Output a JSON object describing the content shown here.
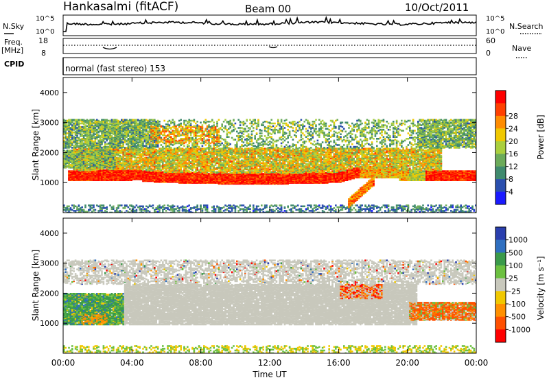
{
  "header": {
    "station": "Hankasalmi (fitACF)",
    "beam": "Beam 00",
    "date": "10/Oct/2011"
  },
  "sky_panel": {
    "left_label": "N.Sky",
    "left_ticks": [
      "10^5",
      "10^0"
    ],
    "right_ticks": [
      "10^5",
      "10^0"
    ],
    "right_label": "N.Search"
  },
  "freq_panel": {
    "left_label_1": "Freq.",
    "left_label_2": "[MHz]",
    "left_ticks": [
      "18",
      "8"
    ],
    "right_ticks": [
      "60",
      "0"
    ],
    "right_label": "Nave",
    "cpid_label": "CPID"
  },
  "mode_text": "normal (fast stereo) 153",
  "chart_data": [
    {
      "type": "heatmap",
      "name": "Power",
      "ylabel": "Slant Range [km]",
      "yticks": [
        "1000",
        "2000",
        "3000",
        "4000"
      ],
      "ylim": [
        0,
        4500
      ],
      "xlim": [
        "00:00",
        "24:00"
      ],
      "colorbar": {
        "label": "Power [dB]",
        "ticks": [
          "4",
          "8",
          "12",
          "16",
          "20",
          "24",
          "28"
        ],
        "colors": [
          "#1a1aff",
          "#2a4fae",
          "#3f8a6e",
          "#6cab5a",
          "#aacf3d",
          "#f0c800",
          "#ff8c00",
          "#ff4000",
          "#ff0000"
        ]
      },
      "bands": [
        {
          "range_km": [
            950,
            1500
          ],
          "level": "high",
          "span_ut": [
            "00:00",
            "24:00"
          ]
        },
        {
          "range_km": [
            1500,
            2100
          ],
          "level": "medium",
          "span_ut": [
            "01:00",
            "22:00"
          ]
        },
        {
          "range_km": [
            2100,
            3100
          ],
          "level": "low",
          "span_ut": [
            "00:00",
            "24:00"
          ]
        }
      ]
    },
    {
      "type": "heatmap",
      "name": "Velocity",
      "ylabel": "Slant Range [km]",
      "yticks": [
        "1000",
        "2000",
        "3000",
        "4000"
      ],
      "ylim": [
        0,
        4500
      ],
      "xlabel": "Time UT",
      "xticks": [
        "00:00",
        "04:00",
        "08:00",
        "12:00",
        "16:00",
        "20:00",
        "00:00"
      ],
      "colorbar": {
        "label": "Velocity [m s⁻¹]",
        "ticks": [
          "1000",
          "500",
          "100",
          "25",
          "-25",
          "-100",
          "-500",
          "-1000"
        ],
        "colors": [
          "#2a3fae",
          "#2f6fc0",
          "#3a9a4a",
          "#6cc040",
          "#c8c8bc",
          "#f0c800",
          "#ff9000",
          "#ff5000",
          "#ff0000"
        ]
      },
      "bands": [
        {
          "range_km": [
            950,
            2300
          ],
          "velocity": "near zero",
          "span_ut": [
            "04:00",
            "20:00"
          ]
        },
        {
          "range_km": [
            1000,
            2000
          ],
          "velocity": "positive",
          "span_ut": [
            "00:00",
            "03:30"
          ]
        },
        {
          "range_km": [
            1100,
            1600
          ],
          "velocity": "negative",
          "span_ut": [
            "20:00",
            "24:00"
          ]
        }
      ]
    }
  ]
}
